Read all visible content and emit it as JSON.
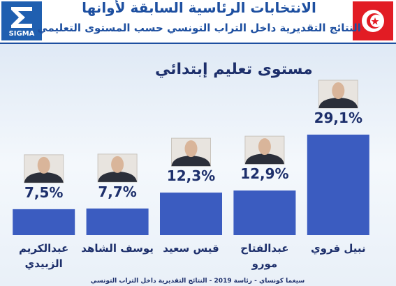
{
  "logo": "SIGMA",
  "footer": "سيغما كونساي - رئاسة 2019 - النتائج التقديرية داخل التراب التونسي",
  "chart_data": {
    "type": "bar",
    "title": "الانتخابات الرئاسية السابقة لأوانها",
    "subtitle": "النتائج التقديرية داخل التراب التونسي حسب المستوى التعليمي",
    "heading": "مستوى تعليم إبتدائي",
    "categories": [
      "عبدالكريم الزبيدي",
      "يوسف الشاهد",
      "قيس سعيد",
      "عبدالفتاح مورو",
      "نبيل قروي"
    ],
    "values": [
      7.5,
      7.7,
      12.3,
      12.9,
      29.1
    ],
    "value_labels": [
      "7,5%",
      "7,7%",
      "12,3%",
      "12,9%",
      "29,1%"
    ],
    "color": "#3b5cc0"
  }
}
